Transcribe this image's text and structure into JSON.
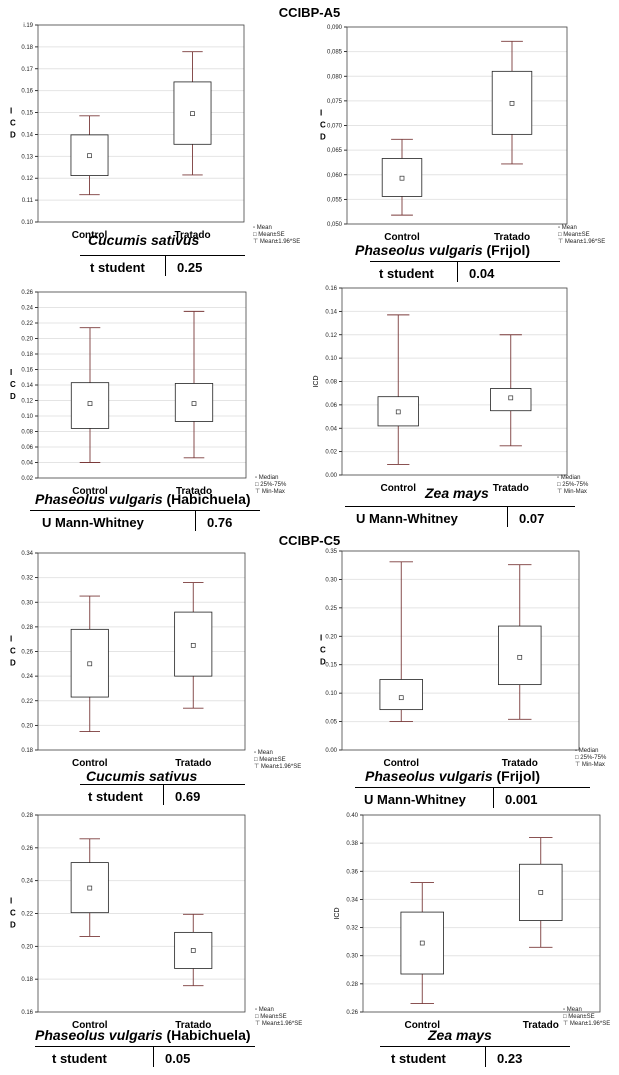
{
  "sections": [
    {
      "title": "CCIBP-A5"
    },
    {
      "title": "CCIBP-C5"
    }
  ],
  "legend_sets": {
    "mean": {
      "center": "Mean",
      "box": "Mean±SE",
      "whisker": "Mean±1.96*SE"
    },
    "median": {
      "center": "Median",
      "box": "25%-75%",
      "whisker": "Min-Max"
    }
  },
  "chart_data": [
    {
      "type": "boxplot",
      "ylabel": "I C D",
      "ylim": [
        0.1,
        0.19
      ],
      "yticks": [
        "0.10",
        "0.11",
        "0.12",
        "0.13",
        "0.14",
        "0.15",
        "0.16",
        "0.17",
        "0.18",
        "0.19"
      ],
      "top_tick_label": "i.19",
      "categories": [
        "Control",
        "Tratado"
      ],
      "boxes": [
        {
          "center": 0.1303,
          "box_low": 0.1212,
          "box_high": 0.1398,
          "whisker_low": 0.1125,
          "whisker_high": 0.1485
        },
        {
          "center": 0.1495,
          "box_low": 0.1355,
          "box_high": 0.164,
          "whisker_low": 0.1215,
          "whisker_high": 0.1778
        }
      ],
      "legend": "mean",
      "species": "Cucumis sativus",
      "species_extra": "",
      "test": "t student",
      "p_value": "0.25"
    },
    {
      "type": "boxplot",
      "ylabel": "I C D",
      "ylim": [
        0.05,
        0.09
      ],
      "yticks": [
        "0,050",
        "0,055",
        "0,060",
        "0,065",
        "0,070",
        "0,075",
        "0,080",
        "0,085",
        "0,090"
      ],
      "categories": [
        "Control",
        "Tratado"
      ],
      "boxes": [
        {
          "center": 0.0593,
          "box_low": 0.0556,
          "box_high": 0.0633,
          "whisker_low": 0.0518,
          "whisker_high": 0.0672
        },
        {
          "center": 0.0745,
          "box_low": 0.0682,
          "box_high": 0.081,
          "whisker_low": 0.0622,
          "whisker_high": 0.0871
        }
      ],
      "legend": "mean",
      "species": "Phaseolus vulgaris",
      "species_extra": " (Frijol)",
      "test": "t student",
      "p_value": "0.04"
    },
    {
      "type": "boxplot",
      "ylabel": "I C D",
      "ylim": [
        0.02,
        0.26
      ],
      "yticks": [
        "0.02",
        "0.04",
        "0.06",
        "0.08",
        "0.10",
        "0.12",
        "0.14",
        "0.16",
        "0.18",
        "0.20",
        "0.22",
        "0.24",
        "0.26"
      ],
      "categories": [
        "Control",
        "Tratado"
      ],
      "boxes": [
        {
          "center": 0.116,
          "box_low": 0.084,
          "box_high": 0.143,
          "whisker_low": 0.04,
          "whisker_high": 0.214
        },
        {
          "center": 0.116,
          "box_low": 0.093,
          "box_high": 0.142,
          "whisker_low": 0.046,
          "whisker_high": 0.235
        }
      ],
      "legend": "median",
      "species": "Phaseolus vulgaris",
      "species_extra": " (Habichuela)",
      "test": "U Mann-Whitney",
      "p_value": "0.76"
    },
    {
      "type": "boxplot",
      "ylabel": "ICD",
      "ylim": [
        0.0,
        0.16
      ],
      "yticks": [
        "0.00",
        "0.02",
        "0.04",
        "0.06",
        "0.08",
        "0.10",
        "0.12",
        "0.14",
        "0.16"
      ],
      "categories": [
        "Control",
        "Tratado"
      ],
      "boxes": [
        {
          "center": 0.054,
          "box_low": 0.042,
          "box_high": 0.067,
          "whisker_low": 0.009,
          "whisker_high": 0.137
        },
        {
          "center": 0.066,
          "box_low": 0.055,
          "box_high": 0.074,
          "whisker_low": 0.025,
          "whisker_high": 0.12
        }
      ],
      "legend": "median",
      "species": "Zea mays",
      "species_extra": "",
      "test": "U Mann-Whitney",
      "p_value": "0.07"
    },
    {
      "type": "boxplot",
      "ylabel": "I C D",
      "ylim": [
        0.18,
        0.34
      ],
      "yticks": [
        "0.18",
        "0.20",
        "0.22",
        "0.24",
        "0.26",
        "0.28",
        "0.30",
        "0.32",
        "0.34"
      ],
      "categories": [
        "Control",
        "Tratado"
      ],
      "boxes": [
        {
          "center": 0.25,
          "box_low": 0.223,
          "box_high": 0.278,
          "whisker_low": 0.195,
          "whisker_high": 0.305
        },
        {
          "center": 0.265,
          "box_low": 0.24,
          "box_high": 0.292,
          "whisker_low": 0.214,
          "whisker_high": 0.316
        }
      ],
      "legend": "mean",
      "species": "Cucumis sativus",
      "species_extra": "",
      "test": "t student",
      "p_value": "0.69"
    },
    {
      "type": "boxplot",
      "ylabel": "I C D",
      "ylim": [
        0.0,
        0.35
      ],
      "yticks": [
        "0.00",
        "0.05",
        "0.10",
        "0.15",
        "0.20",
        "0.25",
        "0.30",
        "0.35"
      ],
      "categories": [
        "Control",
        "Tratado"
      ],
      "boxes": [
        {
          "center": 0.092,
          "box_low": 0.071,
          "box_high": 0.124,
          "whisker_low": 0.05,
          "whisker_high": 0.331
        },
        {
          "center": 0.163,
          "box_low": 0.115,
          "box_high": 0.218,
          "whisker_low": 0.054,
          "whisker_high": 0.326
        }
      ],
      "legend": "median",
      "species": "Phaseolus vulgaris",
      "species_extra": " (Frijol)",
      "test": "U Mann-Whitney",
      "p_value": "0.001"
    },
    {
      "type": "boxplot",
      "ylabel": "I C D",
      "ylim": [
        0.16,
        0.28
      ],
      "yticks": [
        "0.16",
        "0.18",
        "0.20",
        "0.22",
        "0.24",
        "0.26",
        "0.28"
      ],
      "categories": [
        "Control",
        "Tratado"
      ],
      "boxes": [
        {
          "center": 0.2355,
          "box_low": 0.2205,
          "box_high": 0.251,
          "whisker_low": 0.206,
          "whisker_high": 0.2655
        },
        {
          "center": 0.1975,
          "box_low": 0.1865,
          "box_high": 0.2085,
          "whisker_low": 0.176,
          "whisker_high": 0.2195
        }
      ],
      "legend": "mean",
      "species": "Phaseolus vulgaris",
      "species_extra": " (Habichuela)",
      "test": "t student",
      "p_value": "0.05"
    },
    {
      "type": "boxplot",
      "ylabel": "ICD",
      "ylim": [
        0.26,
        0.4
      ],
      "yticks": [
        "0.26",
        "0.28",
        "0.30",
        "0.32",
        "0.34",
        "0.36",
        "0.38",
        "0.40"
      ],
      "categories": [
        "Control",
        "Tratado"
      ],
      "boxes": [
        {
          "center": 0.309,
          "box_low": 0.287,
          "box_high": 0.331,
          "whisker_low": 0.266,
          "whisker_high": 0.352
        },
        {
          "center": 0.345,
          "box_low": 0.325,
          "box_high": 0.365,
          "whisker_low": 0.306,
          "whisker_high": 0.384
        }
      ],
      "legend": "mean",
      "species": "Zea mays",
      "species_extra": "",
      "test": "t student",
      "p_value": "0.23"
    }
  ]
}
